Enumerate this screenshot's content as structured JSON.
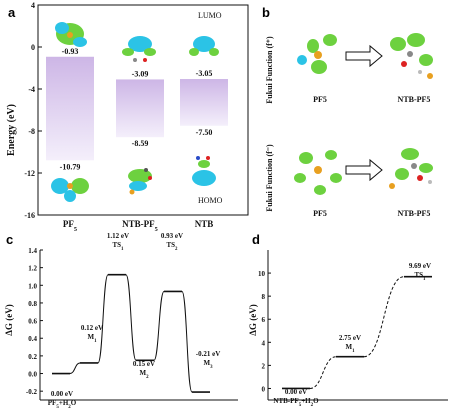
{
  "panels": {
    "a": "a",
    "b": "b",
    "c": "c",
    "d": "d"
  },
  "colors": {
    "bar_top": "#cdb6e6",
    "bar_bottom": "#f2ecfa",
    "iso_green": "#6dd13f",
    "iso_cyan": "#2bc3e6",
    "line": "#111111"
  },
  "chart_data": [
    {
      "type": "bar",
      "panel": "a",
      "ylabel": "Energy (eV)",
      "ylim": [
        -16,
        4
      ],
      "yticks": [
        -16,
        -12,
        -8,
        -4,
        0,
        4
      ],
      "categories": [
        "PF5",
        "NTB-PF5",
        "NTB"
      ],
      "series": [
        {
          "name": "LUMO",
          "values": [
            -0.93,
            -3.09,
            -3.05
          ]
        },
        {
          "name": "HOMO",
          "values": [
            -10.79,
            -8.59,
            -7.5
          ]
        }
      ],
      "value_labels": {
        "lumo": [
          "-0.93",
          "-3.09",
          "-3.05"
        ],
        "homo": [
          "-10.79",
          "-8.59",
          "-7.50"
        ]
      },
      "lumo_label": "LUMO",
      "homo_label": "HOMO",
      "category_labels": [
        {
          "main": "PF",
          "sub": "5"
        },
        {
          "main": "NTB-PF",
          "sub": "5"
        },
        {
          "main": "NTB",
          "sub": ""
        }
      ]
    },
    {
      "type": "line",
      "panel": "c",
      "ylabel": "ΔG (eV)",
      "ylim": [
        -0.3,
        1.4
      ],
      "yticks": [
        -0.2,
        0.0,
        0.2,
        0.4,
        0.6,
        0.8,
        1.0,
        1.2,
        1.4
      ],
      "levels": [
        {
          "value": 0.0,
          "label": "0.00 eV",
          "name": "PF5+H2O"
        },
        {
          "value": 0.12,
          "label": "0.12 eV",
          "name": "M1"
        },
        {
          "value": 1.12,
          "label": "1.12 eV",
          "name": "TS1"
        },
        {
          "value": 0.15,
          "label": "0.15 eV",
          "name": "M2"
        },
        {
          "value": 0.93,
          "label": "0.93 eV",
          "name": "TS2"
        },
        {
          "value": -0.21,
          "label": "-0.21 eV",
          "name": "M3"
        }
      ]
    },
    {
      "type": "line",
      "panel": "d",
      "ylabel": "ΔG (eV)",
      "ylim": [
        -1,
        12
      ],
      "yticks": [
        0,
        2,
        4,
        6,
        8,
        10
      ],
      "levels": [
        {
          "value": 0.0,
          "label": "0.00 eV",
          "name": "NTB-PF5+H2O"
        },
        {
          "value": 2.75,
          "label": "2.75 eV",
          "name": "M1"
        },
        {
          "value": 9.69,
          "label": "9.69 eV",
          "name": "TS1"
        }
      ]
    }
  ],
  "fukui": {
    "plus_label": "Fukui Function (f⁺)",
    "minus_label": "Fukui Function (f⁻)",
    "left_mol": "PF5",
    "right_mol": "NTB-PF5"
  }
}
